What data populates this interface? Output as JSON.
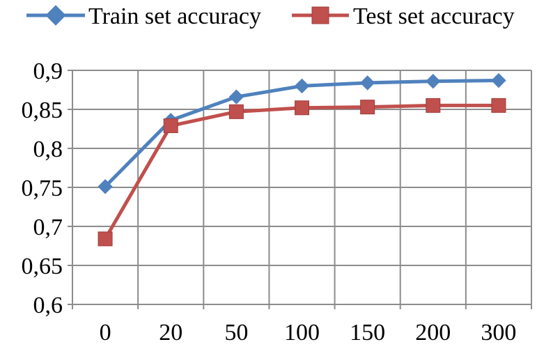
{
  "chart_data": {
    "type": "line",
    "categories": [
      "0",
      "20",
      "50",
      "100",
      "150",
      "200",
      "300"
    ],
    "series": [
      {
        "name": "Train set accuracy",
        "color": "#4F81BD",
        "marker": "diamond",
        "values": [
          0.751,
          0.836,
          0.866,
          0.88,
          0.884,
          0.886,
          0.887
        ]
      },
      {
        "name": "Test set accuracy",
        "color": "#C0504D",
        "marker": "square",
        "values": [
          0.684,
          0.829,
          0.847,
          0.852,
          0.853,
          0.855,
          0.855
        ]
      }
    ],
    "ylim": [
      0.6,
      0.9
    ],
    "yticks": [
      0.9,
      0.85,
      0.8,
      0.75,
      0.7,
      0.65,
      0.6
    ],
    "ytick_labels": [
      "0,9",
      "0,85",
      "0,8",
      "0,75",
      "0,7",
      "0,65",
      "0,6"
    ],
    "grid": true,
    "legend_position": "top"
  }
}
